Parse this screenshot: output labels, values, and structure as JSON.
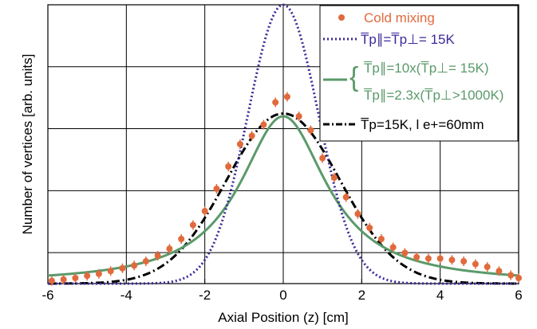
{
  "chart_data": {
    "type": "scatter",
    "title": "",
    "xlabel": "Axial Position (z) [cm]",
    "ylabel": "Number of vertices [arb. units]",
    "xlim": [
      -6,
      6
    ],
    "ylim": [
      0,
      1
    ],
    "x_ticks": [
      -6,
      -4,
      -2,
      0,
      2,
      4,
      6
    ],
    "x_tick_labels": [
      "-6",
      "-4",
      "-2",
      "0",
      "2",
      "4",
      "6"
    ],
    "grid": true,
    "legend_position": "top-right",
    "colors": {
      "cold_mixing": "#e06a3c",
      "dotted": "#3b2a9a",
      "fit": "#5a9a6a",
      "dashdot": "#000000"
    },
    "legend": {
      "cold_mixing": "Cold mixing",
      "dotted": "T̅p∥=T̅p⊥= 15K",
      "fit_line1": "T̅p∥=10x(T̅p⊥= 15K)",
      "fit_line2": "T̅p∥=2.3x(T̅p⊥>1000K)",
      "dashdot": "T̅p=15K, l e+=60mm"
    },
    "series": [
      {
        "name": "Cold mixing",
        "kind": "points",
        "x": [
          -5.9,
          -5.6,
          -5.3,
          -5.0,
          -4.7,
          -4.4,
          -4.1,
          -3.8,
          -3.5,
          -3.2,
          -2.9,
          -2.6,
          -2.3,
          -2.0,
          -1.7,
          -1.4,
          -1.1,
          -0.8,
          -0.5,
          -0.2,
          0.1,
          0.4,
          0.7,
          1.0,
          1.3,
          1.6,
          1.9,
          2.2,
          2.5,
          2.8,
          3.1,
          3.4,
          3.7,
          4.0,
          4.3,
          4.6,
          4.9,
          5.2,
          5.5,
          5.8,
          6.0
        ],
        "y": [
          0.01,
          0.015,
          0.02,
          0.028,
          0.035,
          0.045,
          0.055,
          0.065,
          0.08,
          0.1,
          0.125,
          0.16,
          0.21,
          0.26,
          0.34,
          0.42,
          0.5,
          0.53,
          0.57,
          0.65,
          0.67,
          0.6,
          0.55,
          0.45,
          0.38,
          0.31,
          0.25,
          0.2,
          0.16,
          0.13,
          0.11,
          0.095,
          0.09,
          0.09,
          0.085,
          0.08,
          0.07,
          0.06,
          0.045,
          0.03,
          0.02
        ]
      },
      {
        "name": "T̅p∥=T̅p⊥= 15K",
        "kind": "gaussian",
        "amplitude": 1.0,
        "sigma": 0.9
      },
      {
        "name": "T̅p∥=10x(T̅p⊥= 15K) / T̅p∥=2.3x(T̅p⊥>1000K)",
        "kind": "lorentzian",
        "amplitude": 0.6,
        "gamma": 1.35
      },
      {
        "name": "T̅p=15K, l e+=60mm",
        "kind": "gaussian",
        "amplitude": 0.61,
        "sigma": 1.45
      }
    ]
  }
}
